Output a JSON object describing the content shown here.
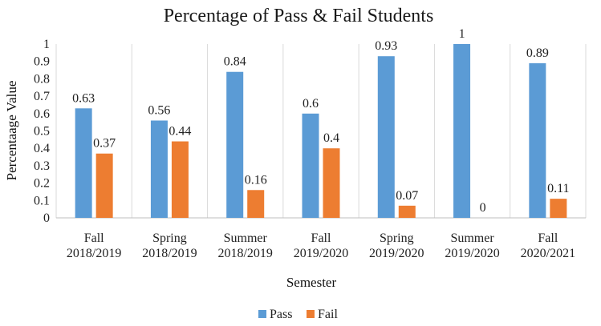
{
  "chart_data": {
    "type": "bar",
    "title": "Percentage of Pass & Fail Students",
    "xlabel": "Semester",
    "ylabel": "Percentaage Value",
    "ylim": [
      0,
      1
    ],
    "yticks": [
      "0",
      "0.1",
      "0.2",
      "0.3",
      "0.4",
      "0.5",
      "0.6",
      "0.7",
      "0.8",
      "0.9",
      "1"
    ],
    "grid": "vertical category separators",
    "legend_position": "bottom",
    "categories": [
      [
        "Fall",
        "2018/2019"
      ],
      [
        "Spring",
        "2018/2019"
      ],
      [
        "Summer",
        "2018/2019"
      ],
      [
        "Fall",
        "2019/2020"
      ],
      [
        "Spring",
        "2019/2020"
      ],
      [
        "Summer",
        "2019/2020"
      ],
      [
        "Fall",
        "2020/2021"
      ]
    ],
    "series": [
      {
        "name": "Pass",
        "color": "#5b9bd5",
        "values": [
          0.63,
          0.56,
          0.84,
          0.6,
          0.93,
          1,
          0.89
        ],
        "labels": [
          "0.63",
          "0.56",
          "0.84",
          "0.6",
          "0.93",
          "1",
          "0.89"
        ]
      },
      {
        "name": "Fail",
        "color": "#ed7d31",
        "values": [
          0.37,
          0.44,
          0.16,
          0.4,
          0.07,
          0,
          0.11
        ],
        "labels": [
          "0.37",
          "0.44",
          "0.16",
          "0.4",
          "0.07",
          "0",
          "0.11"
        ]
      }
    ]
  }
}
